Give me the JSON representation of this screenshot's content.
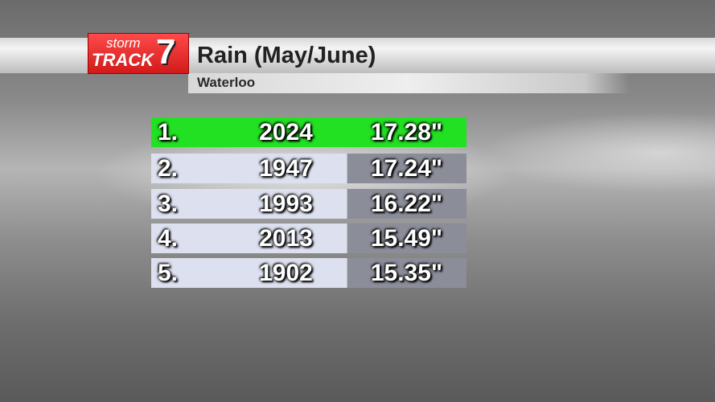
{
  "logo": {
    "top": "storm",
    "main": "TRACK",
    "number": "7"
  },
  "header": {
    "title": "Rain (May/June)",
    "subtitle": "Waterloo"
  },
  "table": {
    "rows": [
      [
        "1.",
        "2024",
        "17.28\""
      ],
      [
        "2.",
        "1947",
        "17.24\""
      ],
      [
        "3.",
        "1993",
        "16.22\""
      ],
      [
        "4.",
        "2013",
        "15.49\""
      ],
      [
        "5.",
        "1902",
        "15.35\""
      ]
    ]
  }
}
